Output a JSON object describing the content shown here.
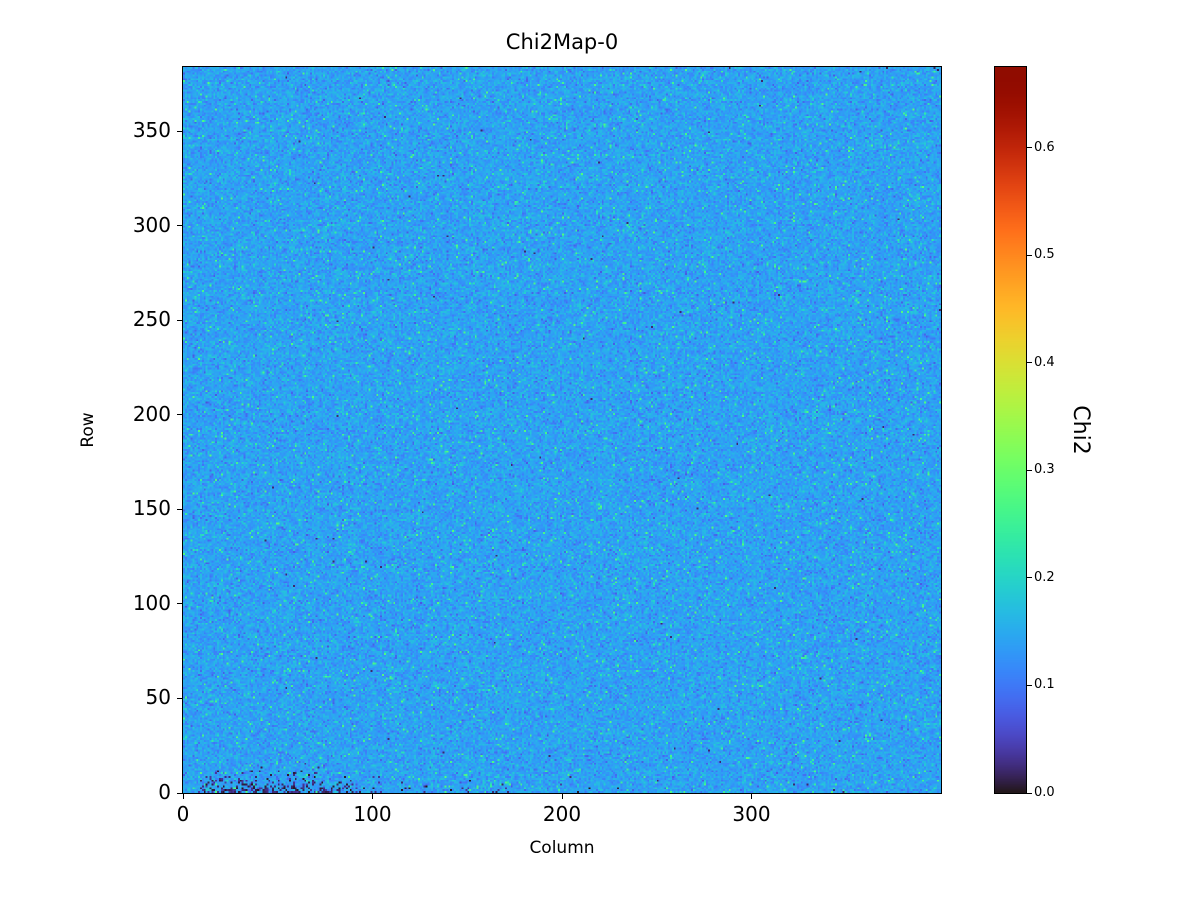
{
  "figure": {
    "background": "#ffffff",
    "frame_color": "#000000"
  },
  "chart_data": {
    "type": "heatmap",
    "title": "Chi2Map-0",
    "xlabel": "Column",
    "ylabel": "Row",
    "x_range": [
      0,
      400
    ],
    "y_range": [
      0,
      384
    ],
    "x_ticks": [
      0,
      100,
      200,
      300
    ],
    "y_ticks": [
      0,
      50,
      100,
      150,
      200,
      250,
      300,
      350
    ],
    "grid": false,
    "legend": false,
    "colormap": "turbo",
    "colorbar": {
      "label": "Chi2",
      "ticks": [
        0.0,
        0.1,
        0.2,
        0.3,
        0.4,
        0.5,
        0.6
      ],
      "vmin": 0.0,
      "vmax": 0.675,
      "position": "right"
    },
    "values_summary": {
      "mean": 0.14,
      "std": 0.02,
      "green_speckle_fraction": 0.025,
      "green_speckle_range": [
        0.19,
        0.28
      ],
      "dark_speckle_fraction": 0.02,
      "dark_speckle_range": [
        0.07,
        0.11
      ],
      "anomaly": "cluster of near-zero (dark) pixels in bottom-left corner, rows 0-15, columns ~10-230, densest around column 42",
      "anomaly_value_range": [
        0.0,
        0.04
      ]
    }
  }
}
